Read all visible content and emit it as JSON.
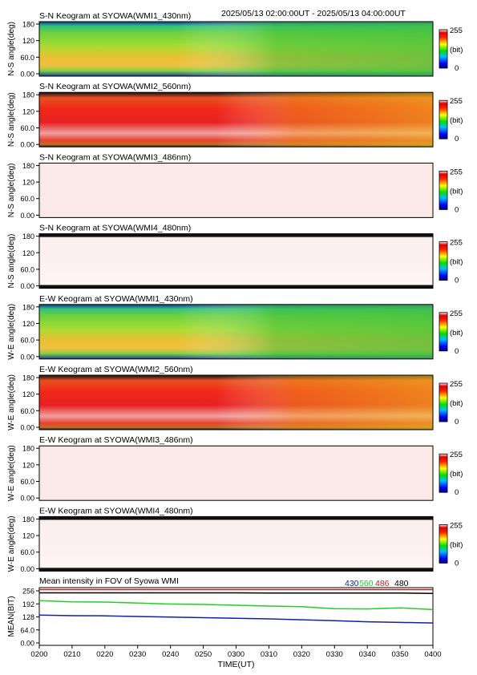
{
  "header": {
    "time_range": "2025/05/13 02:00:00UT - 2025/05/13 04:00:00UT"
  },
  "colorbar": {
    "max_label": "255",
    "unit_label": "(bit)",
    "min_label": "0"
  },
  "keograms": [
    {
      "title": "S-N Keogram at SYOWA(WMI1_430nm)",
      "ylabel": "N-S angle(deg)",
      "style": "green"
    },
    {
      "title": "S-N Keogram at SYOWA(WMI2_560nm)",
      "ylabel": "N-S angle(deg)",
      "style": "red"
    },
    {
      "title": "S-N Keogram at SYOWA(WMI3_486nm)",
      "ylabel": "N-S angle(deg)",
      "style": "pale"
    },
    {
      "title": "S-N Keogram at SYOWA(WMI4_480nm)",
      "ylabel": "N-S angle(deg)",
      "style": "white"
    },
    {
      "title": "E-W Keogram at SYOWA(WMI1_430nm)",
      "ylabel": "W-E angle(deg)",
      "style": "green"
    },
    {
      "title": "E-W Keogram at SYOWA(WMI2_560nm)",
      "ylabel": "W-E angle(deg)",
      "style": "red"
    },
    {
      "title": "E-W Keogram at SYOWA(WMI3_486nm)",
      "ylabel": "W-E angle(deg)",
      "style": "pale"
    },
    {
      "title": "E-W Keogram at SYOWA(WMI4_480nm)",
      "ylabel": "W-E angle(deg)",
      "style": "white"
    }
  ],
  "keogram_yticks": [
    "180",
    "120",
    "60.0",
    "0.00"
  ],
  "chart_data": {
    "type": "line",
    "title": "Mean intensity in FOV of Syowa WMI",
    "xlabel": "TIME(UT)",
    "ylabel": "MEAN(BIT)",
    "ylim": [
      0,
      256
    ],
    "yticks": [
      "256",
      "192",
      "128",
      "64.0",
      "0.00"
    ],
    "xticks": [
      "0200",
      "0210",
      "0220",
      "0230",
      "0240",
      "0250",
      "0300",
      "0310",
      "0320",
      "0330",
      "0340",
      "0350",
      "0400"
    ],
    "x_minutes": [
      0,
      10,
      20,
      30,
      40,
      50,
      60,
      70,
      80,
      90,
      100,
      110,
      120
    ],
    "series": [
      {
        "name": "430",
        "color": "#1020b0",
        "values": [
          137,
          134,
          133,
          130,
          127,
          124,
          121,
          118,
          114,
          109,
          104,
          101,
          98
        ]
      },
      {
        "name": "560",
        "color": "#22d022",
        "values": [
          208,
          202,
          201,
          196,
          191,
          189,
          185,
          181,
          178,
          168,
          167,
          172,
          164
        ]
      },
      {
        "name": "486",
        "color": "#c02020",
        "values": [
          262,
          262,
          262,
          262,
          262,
          262,
          262,
          262,
          262,
          262,
          262,
          262,
          262
        ]
      },
      {
        "name": "480",
        "color": "#000000",
        "values": [
          246,
          246,
          246,
          246,
          246,
          246,
          246,
          245,
          245,
          245,
          245,
          245,
          243
        ]
      }
    ]
  }
}
